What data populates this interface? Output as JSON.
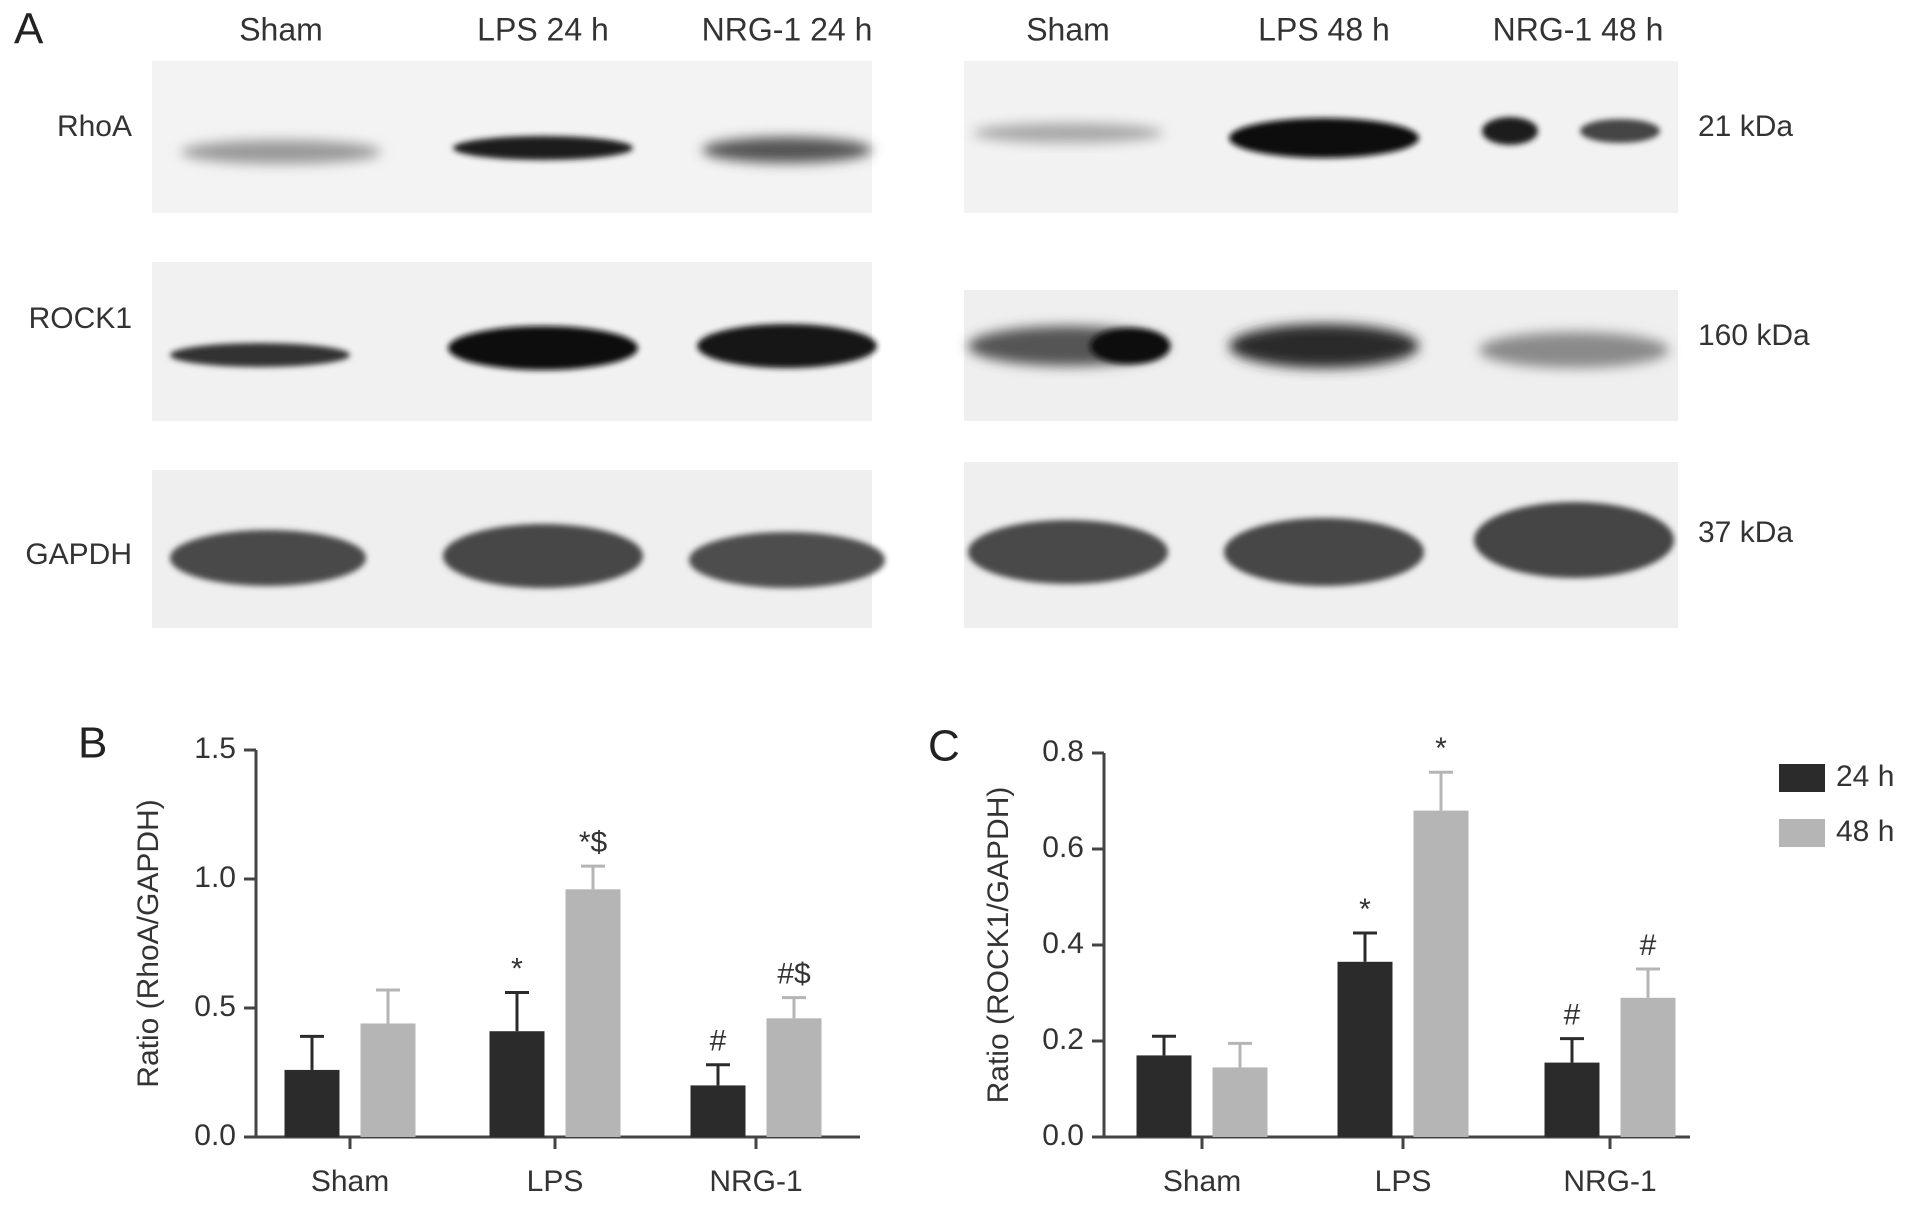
{
  "blot": {
    "panel_label": "A",
    "lanes_left": [
      "Sham",
      "LPS 24 h",
      "NRG-1 24 h"
    ],
    "lanes_right": [
      "Sham",
      "LPS 48 h",
      "NRG-1 48 h"
    ],
    "proteins": [
      "RhoA",
      "ROCK1",
      "GAPDH"
    ],
    "sizes": [
      "21 kDa",
      "160 kDa",
      "37 kDa"
    ]
  },
  "chart_data": [
    {
      "type": "bar",
      "panel_label": "B",
      "y_label": "Ratio (RhoA/GAPDH)",
      "categories": [
        "Sham",
        "LPS",
        "NRG-1"
      ],
      "series": [
        {
          "color": "#2b2b2b",
          "values": [
            0.26,
            0.41,
            0.2
          ],
          "errors": [
            0.13,
            0.15,
            0.08
          ],
          "annotations": [
            null,
            "*",
            "#"
          ]
        },
        {
          "color": "#b5b5b5",
          "values": [
            0.44,
            0.96,
            0.46
          ],
          "errors": [
            0.13,
            0.09,
            0.08
          ],
          "annotations": [
            null,
            "*$",
            "#$"
          ]
        }
      ],
      "ylim": [
        0,
        1.5
      ],
      "yticks": [
        {
          "value": 0,
          "label": "0.0"
        },
        {
          "value": 0.5,
          "label": "0.5"
        },
        {
          "value": 1,
          "label": "1.0"
        },
        {
          "value": 1.5,
          "label": "1.5"
        }
      ]
    },
    {
      "type": "bar",
      "panel_label": "C",
      "y_label": "Ratio (ROCK1/GAPDH)",
      "categories": [
        "Sham",
        "LPS",
        "NRG-1"
      ],
      "series": [
        {
          "name": "24 h",
          "color": "#2b2b2b",
          "values": [
            0.17,
            0.365,
            0.155
          ],
          "errors": [
            0.04,
            0.06,
            0.05
          ],
          "annotations": [
            null,
            "*",
            "#"
          ]
        },
        {
          "name": "48 h",
          "color": "#b5b5b5",
          "values": [
            0.145,
            0.68,
            0.29
          ],
          "errors": [
            0.05,
            0.08,
            0.06
          ],
          "annotations": [
            null,
            "*",
            "#"
          ]
        }
      ],
      "ylim": [
        0,
        0.8
      ],
      "yticks": [
        {
          "value": 0,
          "label": "0.0"
        },
        {
          "value": 0.2,
          "label": "0.2"
        },
        {
          "value": 0.4,
          "label": "0.4"
        },
        {
          "value": 0.6,
          "label": "0.6"
        },
        {
          "value": 0.8,
          "label": "0.8"
        }
      ],
      "legend": "right"
    }
  ]
}
